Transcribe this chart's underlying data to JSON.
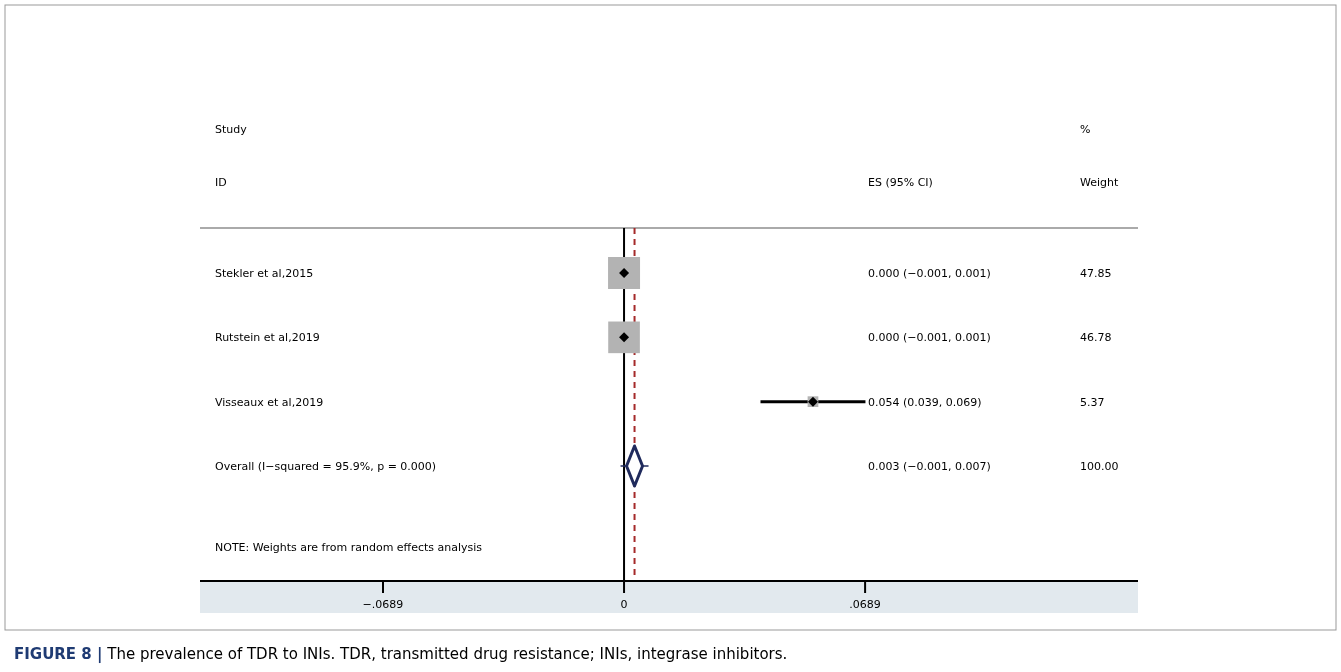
{
  "chart_data": {
    "type": "scatter",
    "orientation": "horizontal",
    "categories": [
      "Stekler et al,2015",
      "Rutstein et al,2019",
      "Visseaux et al,2019",
      "Overall  (I−squared = 95.9%, p = 0.000)"
    ],
    "series": [
      {
        "color": "#b3b3b3",
        "marker": "square",
        "values": [
          0,
          0,
          0.054,
          null
        ],
        "errors": [
          null,
          null,
          0.015,
          null
        ],
        "sizes": [
          1,
          0.978,
          0.112,
          null
        ]
      },
      {
        "color": "#1f2a5c",
        "marker": "diamond",
        "values": [
          null,
          null,
          null,
          0.003
        ],
        "errors": [
          null,
          null,
          null,
          0.004
        ]
      }
    ],
    "xlim": [
      -0.1212,
      0.1469
    ],
    "xticks": [
      {
        "value": -0.0689,
        "label": "−.0689"
      },
      0,
      {
        "value": 0.0689,
        "label": ".0689"
      }
    ],
    "ref_lines": [
      {
        "axis": "x",
        "value": 0,
        "color": "#000000",
        "line_style": "solid"
      },
      {
        "axis": "x",
        "value": 0.003,
        "color": "#a52a2a",
        "line_style": "dashed"
      }
    ],
    "grid": false,
    "annotations": [
      "Study",
      "ID",
      "%",
      "ES (95% CI)",
      "Weight",
      "0.000 (−0.001, 0.001)",
      "0.000 (−0.001, 0.001)",
      "0.054 (0.039, 0.069)",
      "0.003 (−0.001, 0.007)",
      "47.85",
      "46.78",
      "5.37",
      "100.00",
      "NOTE: Weights are from random effects analysis",
      "FIGURE 8 | The prevalence of TDR to INIs. TDR, transmitted drug resistance; INIs, integrase inhibitors."
    ]
  }
}
